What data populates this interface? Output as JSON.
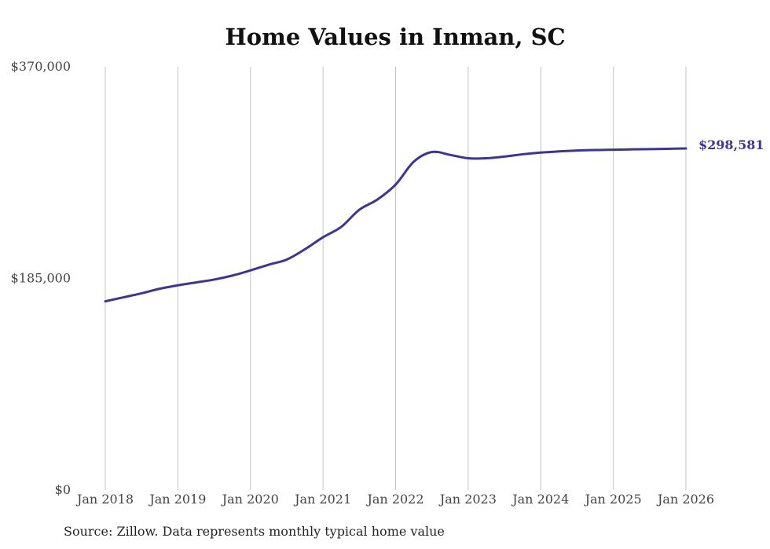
{
  "chart_data": {
    "type": "line",
    "title": "Home Values in Inman, SC",
    "xlabel": "",
    "ylabel": "",
    "source_note": "Source: Zillow. Data represents monthly typical home value",
    "line_color": "#3b3596",
    "grid_color": "#c4c4c4",
    "y_ticks": [
      {
        "value": 0,
        "label": "$0"
      },
      {
        "value": 185000,
        "label": "$185,000"
      },
      {
        "value": 370000,
        "label": "$370,000"
      }
    ],
    "ylim": [
      0,
      370000
    ],
    "xlim": [
      2018.0,
      2026.0
    ],
    "x_ticks": [
      {
        "value": 2018,
        "label": "Jan 2018"
      },
      {
        "value": 2019,
        "label": "Jan 2019"
      },
      {
        "value": 2020,
        "label": "Jan 2020"
      },
      {
        "value": 2021,
        "label": "Jan 2021"
      },
      {
        "value": 2022,
        "label": "Jan 2022"
      },
      {
        "value": 2023,
        "label": "Jan 2023"
      },
      {
        "value": 2024,
        "label": "Jan 2024"
      },
      {
        "value": 2025,
        "label": "Jan 2025"
      },
      {
        "value": 2026,
        "label": "Jan 2026"
      }
    ],
    "series": [
      {
        "name": "Typical home value",
        "end_label": "$298,581",
        "x": [
          2018.0,
          2018.25,
          2018.5,
          2018.75,
          2019.0,
          2019.25,
          2019.5,
          2019.75,
          2020.0,
          2020.25,
          2020.5,
          2020.75,
          2021.0,
          2021.25,
          2021.5,
          2021.75,
          2022.0,
          2022.25,
          2022.5,
          2022.75,
          2023.0,
          2023.25,
          2023.5,
          2023.75,
          2024.0,
          2024.25,
          2024.5,
          2024.75,
          2025.0,
          2025.25,
          2025.5,
          2025.75,
          2026.0
        ],
        "values": [
          165000,
          168500,
          172000,
          176000,
          179000,
          181500,
          184000,
          187500,
          192000,
          197000,
          201500,
          210500,
          221000,
          230000,
          245000,
          254000,
          267000,
          287000,
          295500,
          293000,
          290000,
          290000,
          291500,
          293500,
          295000,
          296000,
          296800,
          297200,
          297500,
          297800,
          298000,
          298300,
          298581
        ]
      }
    ]
  }
}
